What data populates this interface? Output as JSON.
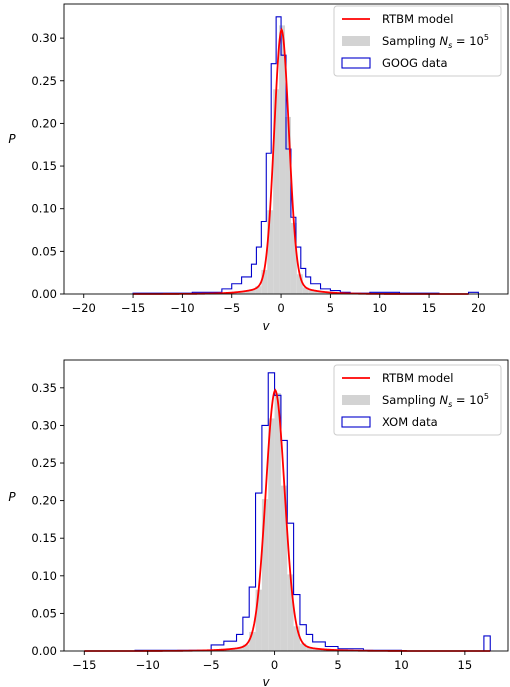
{
  "chart_data": [
    {
      "type": "histogram",
      "xlabel": "v",
      "ylabel": "P",
      "xlim": [
        -22,
        23
      ],
      "ylim": [
        0,
        0.34
      ],
      "xticks": [
        -20,
        -15,
        -10,
        -5,
        0,
        5,
        10,
        15,
        20
      ],
      "xtick_labels": [
        "−20",
        "−15",
        "−10",
        "−5",
        "0",
        "5",
        "10",
        "15",
        "20"
      ],
      "yticks": [
        0.0,
        0.05,
        0.1,
        0.15,
        0.2,
        0.25,
        0.3
      ],
      "ytick_labels": [
        "0.00",
        "0.05",
        "0.10",
        "0.15",
        "0.20",
        "0.25",
        "0.30"
      ],
      "legend": {
        "position": "top-right",
        "entries": [
          {
            "label": "RTBM model",
            "style": "line",
            "color": "#ff0000"
          },
          {
            "label": "Sampling ",
            "math": "N",
            "sub": "s",
            "eq": " = 10",
            "sup": "5",
            "style": "fill",
            "color": "#d3d3d3"
          },
          {
            "label": "GOOG data",
            "style": "step",
            "color": "#0000cc"
          }
        ]
      },
      "data_hist": {
        "color": "#0000cc",
        "edges": [
          -15,
          -9,
          -6,
          -5,
          -4,
          -3,
          -2.5,
          -2,
          -1.5,
          -1,
          -0.5,
          0,
          0.5,
          1,
          1.5,
          2,
          2.5,
          3,
          4,
          5,
          6,
          7,
          9,
          12,
          16,
          19,
          20
        ],
        "values": [
          0.001,
          0.002,
          0.006,
          0.012,
          0.02,
          0.035,
          0.055,
          0.085,
          0.165,
          0.27,
          0.325,
          0.28,
          0.17,
          0.09,
          0.055,
          0.03,
          0.02,
          0.012,
          0.006,
          0.004,
          0.002,
          0.001,
          0.002,
          0.001,
          0.0,
          0.002
        ]
      },
      "sampling_hist": {
        "color": "#d3d3d3",
        "bin_width": 0.6,
        "x_range": [
          -14,
          19
        ]
      },
      "model_curve": {
        "color": "#ff0000",
        "peak": 0.31,
        "center": 0.05,
        "sigma": 0.75,
        "tail_weight": 0.075,
        "tail_scale": 1.9,
        "x_range": [
          -15,
          19
        ]
      }
    },
    {
      "type": "histogram",
      "xlabel": "v",
      "ylabel": "P",
      "xlim": [
        -16.6,
        18.4
      ],
      "ylim": [
        0,
        0.387
      ],
      "xticks": [
        -15,
        -10,
        -5,
        0,
        5,
        10,
        15
      ],
      "xtick_labels": [
        "−15",
        "−10",
        "−5",
        "0",
        "5",
        "10",
        "15"
      ],
      "yticks": [
        0.0,
        0.05,
        0.1,
        0.15,
        0.2,
        0.25,
        0.3,
        0.35
      ],
      "ytick_labels": [
        "0.00",
        "0.05",
        "0.10",
        "0.15",
        "0.20",
        "0.25",
        "0.30",
        "0.35"
      ],
      "legend": {
        "position": "top-right",
        "entries": [
          {
            "label": "RTBM model",
            "style": "line",
            "color": "#ff0000"
          },
          {
            "label": "Sampling ",
            "math": "N",
            "sub": "s",
            "eq": " = 10",
            "sup": "5",
            "style": "fill",
            "color": "#d3d3d3"
          },
          {
            "label": "XOM data",
            "style": "step",
            "color": "#0000cc"
          }
        ]
      },
      "data_hist": {
        "color": "#0000cc",
        "edges": [
          -11,
          -5,
          -4,
          -3,
          -2.5,
          -2,
          -1.5,
          -1,
          -0.5,
          0,
          0.5,
          1,
          1.5,
          2,
          2.5,
          3,
          4,
          5,
          7,
          10,
          16.5,
          17
        ],
        "values": [
          0.001,
          0.008,
          0.013,
          0.022,
          0.045,
          0.085,
          0.21,
          0.3,
          0.37,
          0.34,
          0.28,
          0.17,
          0.075,
          0.035,
          0.022,
          0.012,
          0.006,
          0.003,
          0.001,
          0.0,
          0.02
        ]
      },
      "sampling_hist": {
        "color": "#d3d3d3",
        "bin_width": 0.5,
        "x_range": [
          -11,
          11
        ]
      },
      "model_curve": {
        "color": "#ff0000",
        "peak": 0.347,
        "center": 0.05,
        "sigma": 0.75,
        "tail_weight": 0.06,
        "tail_scale": 1.7,
        "x_range": [
          -15,
          17
        ]
      }
    }
  ]
}
